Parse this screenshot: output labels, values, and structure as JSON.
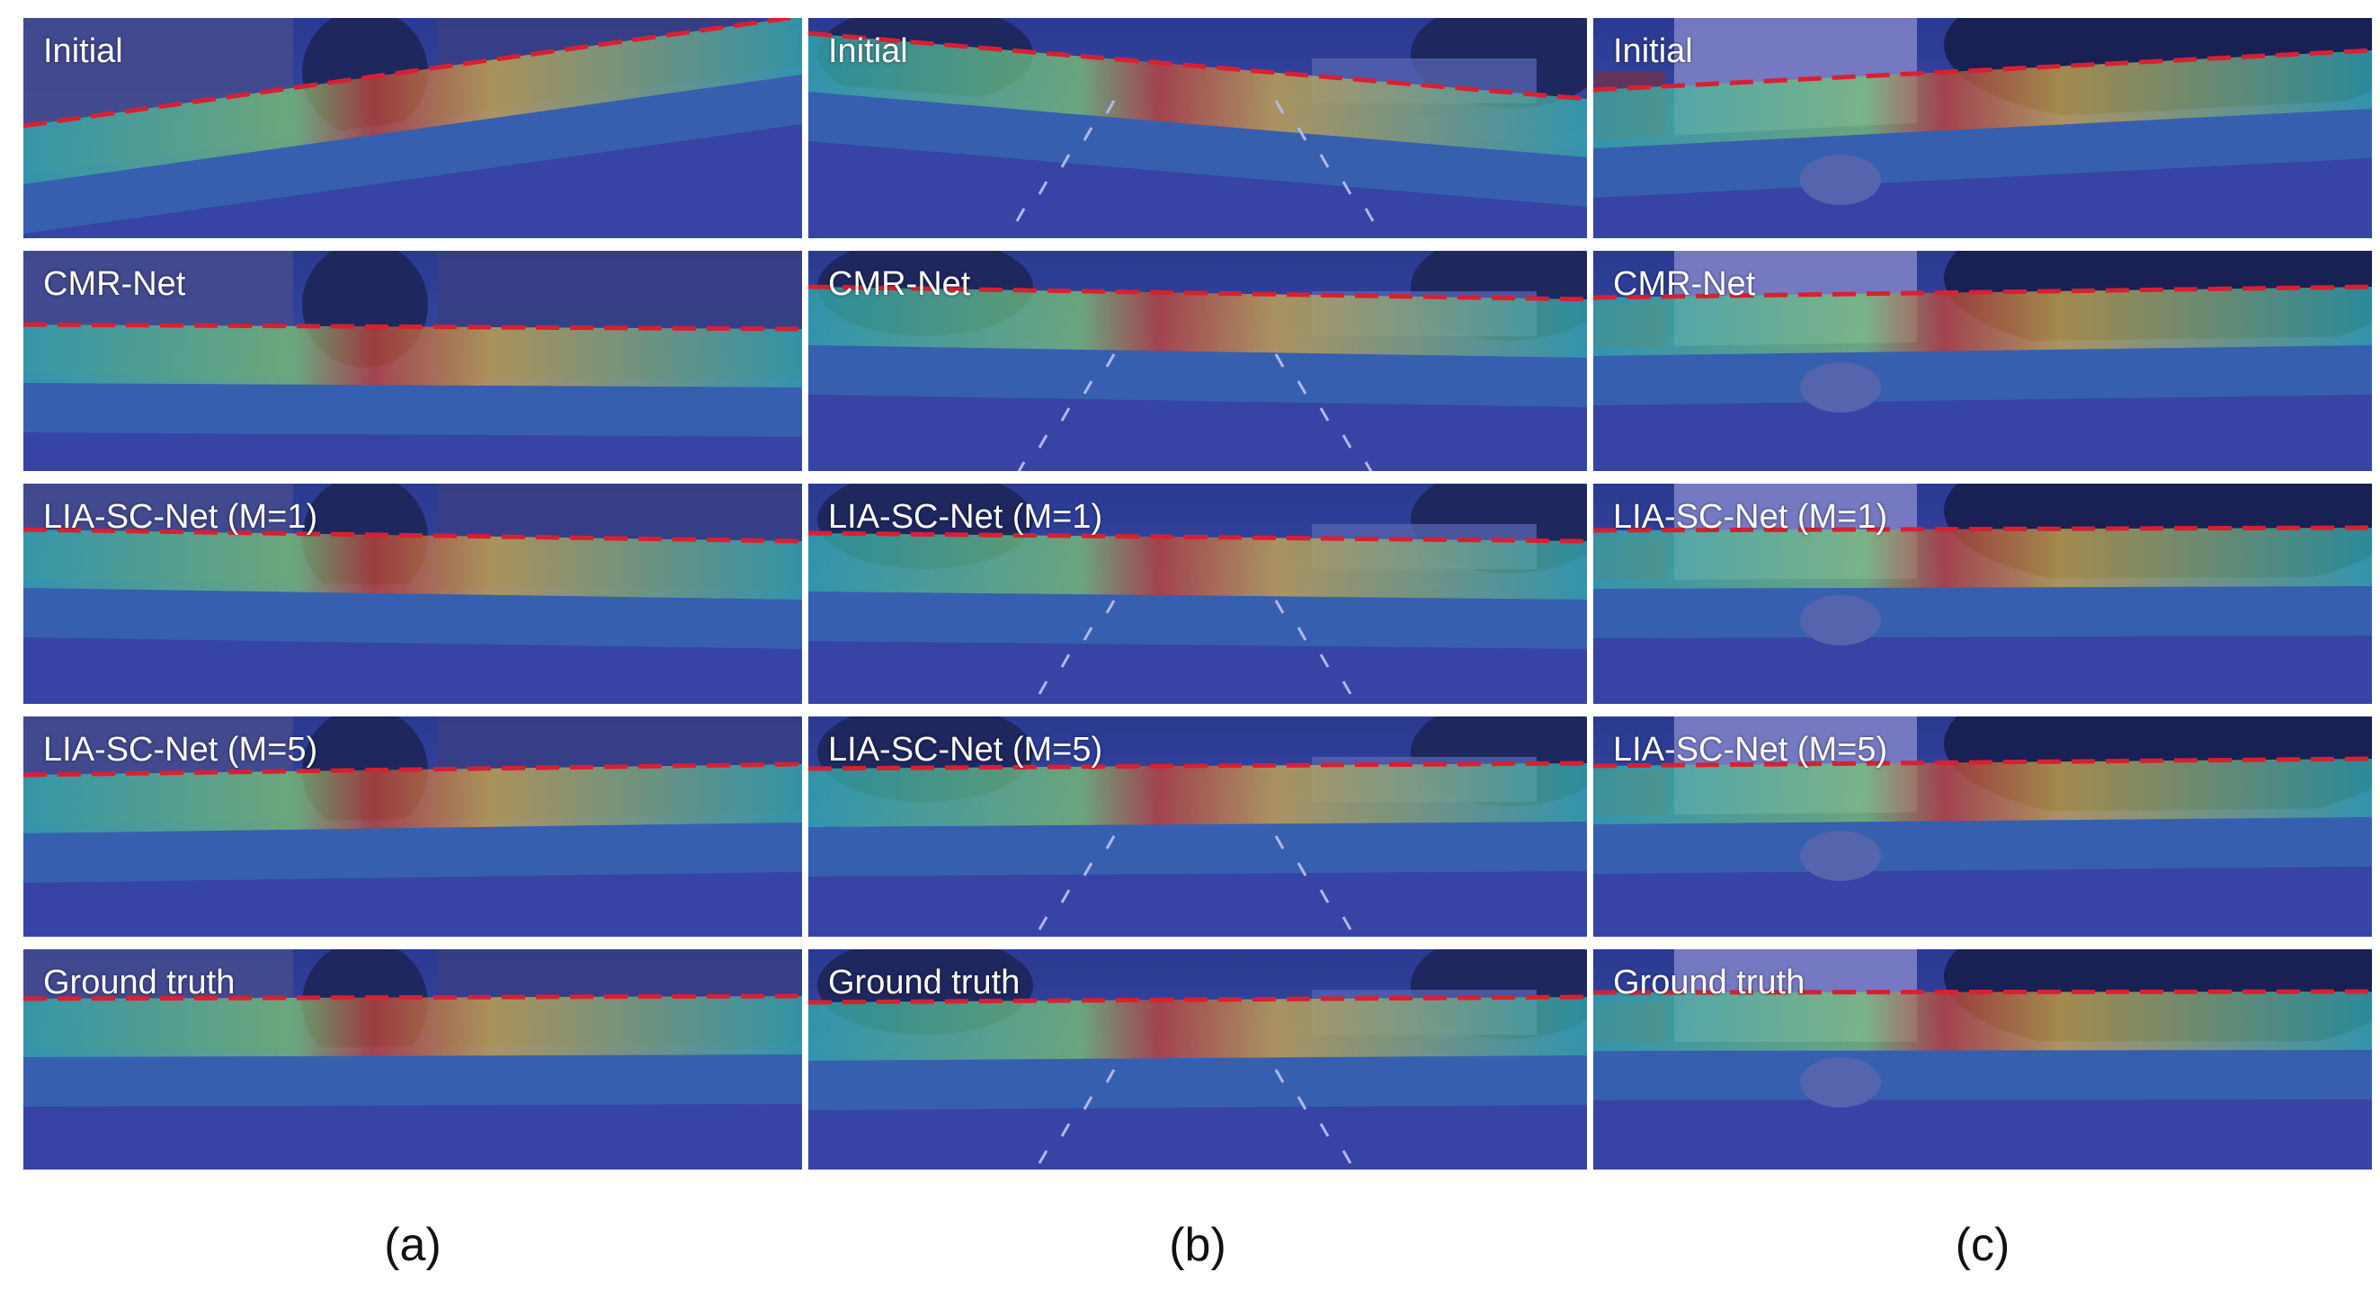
{
  "figure": {
    "columns": [
      {
        "caption": "(a)",
        "scene": "street-buildings",
        "rows": [
          {
            "label": "Initial"
          },
          {
            "label": "CMR-Net"
          },
          {
            "label": "LIA-SC-Net (M=1)"
          },
          {
            "label": "LIA-SC-Net (M=5)"
          },
          {
            "label": "Ground truth"
          }
        ]
      },
      {
        "caption": "(b)",
        "scene": "wide-road",
        "rows": [
          {
            "label": "Initial"
          },
          {
            "label": "CMR-Net"
          },
          {
            "label": "LIA-SC-Net (M=1)"
          },
          {
            "label": "LIA-SC-Net (M=5)"
          },
          {
            "label": "Ground truth"
          }
        ]
      },
      {
        "caption": "(c)",
        "scene": "residential-street",
        "rows": [
          {
            "label": "Initial"
          },
          {
            "label": "CMR-Net"
          },
          {
            "label": "LIA-SC-Net (M=1)"
          },
          {
            "label": "LIA-SC-Net (M=5)"
          },
          {
            "label": "Ground truth"
          }
        ]
      }
    ],
    "colors": {
      "overlay_blue": "#2c3f9e",
      "sky": "#3b4fa8",
      "road": "#3a45a6",
      "lidar_warm": "#e8461f",
      "lidar_cool": "#32c8b4",
      "dashed_line": "#ff1a1a",
      "separator": "#ffffff"
    }
  }
}
